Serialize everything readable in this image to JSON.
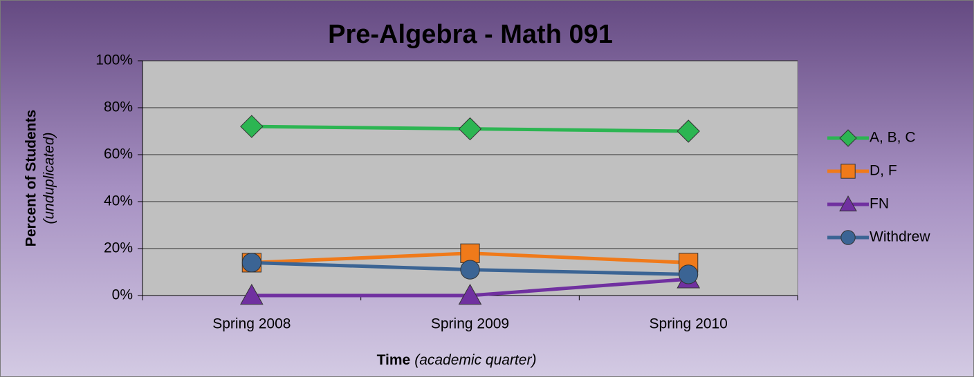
{
  "chart_data": {
    "type": "line",
    "title": "Pre-Algebra - Math 091",
    "ylabel": "Percent of Students",
    "ylabel_note": "(unduplicated)",
    "xlabel": "Time",
    "xlabel_note": "(academic quarter)",
    "categories": [
      "Spring 2008",
      "Spring 2009",
      "Spring 2010"
    ],
    "series": [
      {
        "name": "A, B, C",
        "color": "#2cb552",
        "marker": "diamond",
        "values": [
          72,
          71,
          70
        ]
      },
      {
        "name": "D, F",
        "color": "#f07a1a",
        "marker": "square",
        "values": [
          14,
          18,
          14
        ]
      },
      {
        "name": "FN",
        "color": "#7030a0",
        "marker": "triangle",
        "values": [
          0,
          0,
          7
        ]
      },
      {
        "name": "Withdrew",
        "color": "#3b6494",
        "marker": "circle",
        "values": [
          14,
          11,
          9
        ]
      }
    ],
    "ylim": [
      0,
      100
    ],
    "yticks": [
      {
        "value": 0,
        "label": "0%"
      },
      {
        "value": 20,
        "label": "20%"
      },
      {
        "value": 40,
        "label": "40%"
      },
      {
        "value": 60,
        "label": "60%"
      },
      {
        "value": 80,
        "label": "80%"
      },
      {
        "value": 100,
        "label": "100%"
      }
    ],
    "grid": true,
    "legend": "right"
  }
}
